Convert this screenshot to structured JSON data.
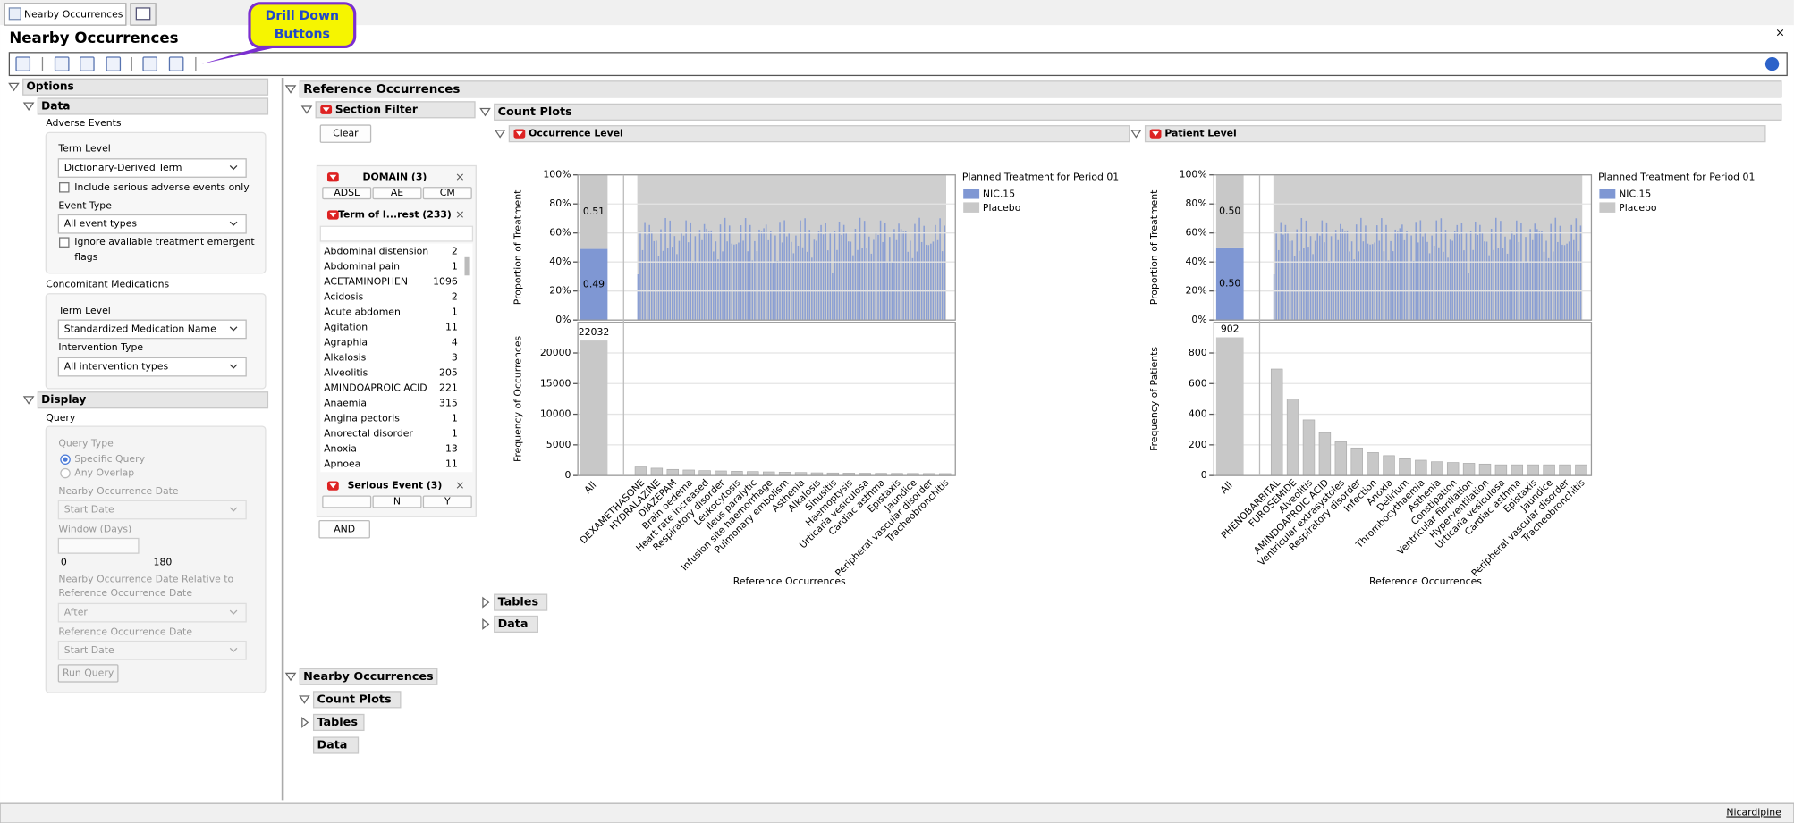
{
  "tabs": {
    "active": "Nearby Occurrences"
  },
  "header": {
    "title": "Nearby Occurrences",
    "callout": [
      "Drill Down",
      "Buttons"
    ]
  },
  "options": {
    "title": "Options",
    "data": {
      "title": "Data",
      "adverse_events": {
        "title": "Adverse Events",
        "term_level_label": "Term Level",
        "term_level": "Dictionary-Derived Term",
        "serious_only": "Include serious adverse events only",
        "event_type_label": "Event Type",
        "event_type": "All event types",
        "ignore_flags": [
          "Ignore available treatment emergent",
          "flags"
        ]
      },
      "con_meds": {
        "title": "Concomitant Medications",
        "term_level_label": "Term Level",
        "term_level": "Standardized Medication Name",
        "intervention_label": "Intervention Type",
        "intervention": "All intervention types"
      }
    },
    "display": {
      "title": "Display",
      "query": "Query",
      "query_type": "Query Type",
      "specific": "Specific Query",
      "overlap": "Any Overlap",
      "nearby_date_label": "Nearby Occurrence Date",
      "nearby_date": "Start Date",
      "window_label": "Window (Days)",
      "window_min": 0,
      "window_max": 180,
      "relative_label": [
        "Nearby Occurrence Date Relative to",
        "Reference Occurrence Date"
      ],
      "relative": "After",
      "ref_date_label": "Reference Occurrence Date",
      "ref_date": "Start Date",
      "run": "Run Query"
    }
  },
  "reference": {
    "title": "Reference Occurrences",
    "section_filter": "Section Filter",
    "clear": "Clear",
    "and": "AND",
    "filters": {
      "domain": {
        "title": "DOMAIN (3)",
        "buttons": [
          "ADSL",
          "AE",
          "CM"
        ]
      },
      "term": {
        "title": "Term of I...rest (233)",
        "items": [
          [
            "Abdominal distension",
            2
          ],
          [
            "Abdominal pain",
            1
          ],
          [
            "ACETAMINOPHEN",
            1096
          ],
          [
            "Acidosis",
            2
          ],
          [
            "Acute abdomen",
            1
          ],
          [
            "Agitation",
            11
          ],
          [
            "Agraphia",
            4
          ],
          [
            "Alkalosis",
            3
          ],
          [
            "Alveolitis",
            205
          ],
          [
            "AMINDOAPROIC ACID",
            221
          ],
          [
            "Anaemia",
            315
          ],
          [
            "Angina pectoris",
            1
          ],
          [
            "Anorectal disorder",
            1
          ],
          [
            "Anoxia",
            13
          ],
          [
            "Apnoea",
            11
          ]
        ]
      },
      "serious": {
        "title": "Serious Event (3)",
        "buttons": [
          "N",
          "Y"
        ]
      }
    },
    "count_plots": "Count Plots",
    "tables": "Tables",
    "data": "Data",
    "plots": [
      {
        "type": "bar",
        "title": "Occurrence Level",
        "legend_title": "Planned Treatment for Period 01",
        "series": [
          {
            "name": "NIC.15",
            "color": "#7f97d3"
          },
          {
            "name": "Placebo",
            "color": "#c8c8c8"
          }
        ],
        "all_label": "All",
        "all_proportions": [
          49,
          51
        ],
        "all_proportion_labels": [
          "0.49",
          "0.51"
        ],
        "all_count": 22032,
        "prop_ylabel": "Proportion of Treatment",
        "prop_ylim": [
          0,
          100
        ],
        "prop_yticks": [
          {
            "value": 0,
            "label": "0%"
          },
          {
            "value": 20,
            "label": "20%"
          },
          {
            "value": 40,
            "label": "40%"
          },
          {
            "value": 60,
            "label": "60%"
          },
          {
            "value": 80,
            "label": "80%"
          },
          {
            "value": 100,
            "label": "100%"
          }
        ],
        "freq_ylabel": "Frequency of Occurrences",
        "freq_ylim": [
          0,
          25000
        ],
        "freq_yticks": [
          0,
          5000,
          10000,
          15000,
          20000
        ],
        "xlabel": "Reference Occurrences",
        "categories": [
          "DEXAMETHASONE",
          "HYDRALAZINE",
          "DIAZEPAM",
          "Brain oedema",
          "Heart rate increased",
          "Respiratory disorder",
          "Leukocytosis",
          "Ileus paralytic",
          "Infusion site haemorrhage",
          "Pulmonary embolism",
          "Asthenia",
          "Alkalosis",
          "Sinusitis",
          "Haemoptysis",
          "Urticaria vesiculosa",
          "Cardiac asthma",
          "Epistaxis",
          "Jaundice",
          "Peripheral vascular disorder",
          "Tracheobronchitis"
        ],
        "values": [
          1400,
          1200,
          1000,
          900,
          800,
          750,
          700,
          650,
          600,
          550,
          500,
          450,
          420,
          400,
          380,
          360,
          350,
          340,
          330,
          320
        ]
      },
      {
        "type": "bar",
        "title": "Patient Level",
        "legend_title": "Planned Treatment for Period 01",
        "series": [
          {
            "name": "NIC.15",
            "color": "#7f97d3"
          },
          {
            "name": "Placebo",
            "color": "#c8c8c8"
          }
        ],
        "all_label": "All",
        "all_proportions": [
          50,
          50
        ],
        "all_proportion_labels": [
          "0.50",
          "0.50"
        ],
        "all_count": 902,
        "prop_ylabel": "Proportion of Treatment",
        "prop_ylim": [
          0,
          100
        ],
        "prop_yticks": [
          {
            "value": 0,
            "label": "0%"
          },
          {
            "value": 20,
            "label": "20%"
          },
          {
            "value": 40,
            "label": "40%"
          },
          {
            "value": 60,
            "label": "60%"
          },
          {
            "value": 80,
            "label": "80%"
          },
          {
            "value": 100,
            "label": "100%"
          }
        ],
        "freq_ylabel": "Frequency of Patients",
        "freq_ylim": [
          0,
          1000
        ],
        "freq_yticks": [
          0,
          200,
          400,
          600,
          800
        ],
        "xlabel": "Reference Occurrences",
        "categories": [
          "PHENOBARBITAL",
          "FUROSEMIDE",
          "Alveolitis",
          "AMINDOAPROIC ACID",
          "Ventricular extrasystoles",
          "Respiratory disorder",
          "Infection",
          "Anoxia",
          "Delirium",
          "Thrombocythaemia",
          "Asthenia",
          "Constipation",
          "Ventricular fibrillation",
          "Hyperventilation",
          "Urticaria vesiculosa",
          "Cardiac asthma",
          "Epistaxis",
          "Jaundice",
          "Peripheral vascular disorder",
          "Tracheobronchitis"
        ],
        "values": [
          695,
          500,
          363,
          280,
          220,
          180,
          150,
          130,
          110,
          100,
          90,
          85,
          80,
          75,
          70,
          70,
          70,
          70,
          70,
          70
        ]
      }
    ]
  },
  "nearby": {
    "title": "Nearby Occurrences",
    "count_plots": "Count Plots",
    "tables": "Tables",
    "data": "Data"
  },
  "status": "Nicardipine"
}
